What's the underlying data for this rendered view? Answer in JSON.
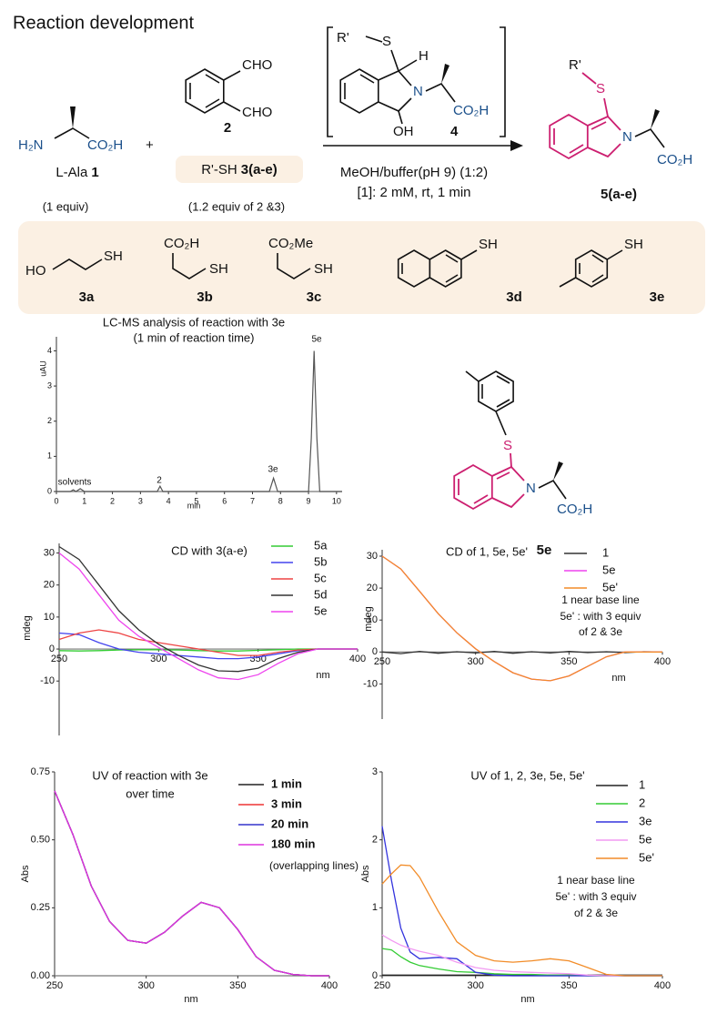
{
  "title": "Reaction development",
  "scheme": {
    "alanine": {
      "amine": "H₂N",
      "acid": "CO₂H",
      "name": "L-Ala",
      "number": "1",
      "equiv": "(1 equiv)"
    },
    "plus": "+",
    "aldehyde": {
      "group_top": "CHO",
      "group_bottom": "CHO",
      "number": "2",
      "thiol_name": "R'-SH",
      "thiol_number": "3(a-e)",
      "equiv": "(1.2 equiv of 2 &3)"
    },
    "intermediate": {
      "r": "R'",
      "s": "S",
      "h": "H",
      "n": "N",
      "acid": "CO₂H",
      "oh": "OH",
      "number": "4"
    },
    "conditions": [
      "MeOH/buffer(pH 9) (1:2)",
      "[1]: 2 mM, rt, 1 min"
    ],
    "product": {
      "r": "R'",
      "s": "S",
      "n": "N",
      "acid": "CO₂H",
      "number": "5(a-e)"
    }
  },
  "thiols": [
    {
      "groups": [
        "HO",
        "SH"
      ],
      "number": "3a"
    },
    {
      "groups": [
        "CO₂H",
        "SH"
      ],
      "number": "3b"
    },
    {
      "groups": [
        "CO₂Me",
        "SH"
      ],
      "number": "3c"
    },
    {
      "groups": [
        "SH"
      ],
      "number": "3d"
    },
    {
      "groups": [
        "SH"
      ],
      "number": "3e"
    }
  ],
  "product_5e": {
    "s": "S",
    "n": "N",
    "acid": "CO₂H",
    "number": "5e"
  },
  "chart_data": [
    {
      "type": "line",
      "title": "LC-MS analysis of reaction with 3e",
      "subtitle": "(1 min of reaction time)",
      "x_label": "min",
      "y_label": "uAU",
      "x": [
        0,
        0.5,
        0.6,
        0.7,
        0.85,
        1.0,
        3.6,
        3.7,
        3.8,
        7.6,
        7.75,
        7.9,
        9.0,
        9.1,
        9.2,
        9.3,
        9.4,
        10.2
      ],
      "values": [
        0,
        0,
        0.05,
        0,
        0.08,
        0,
        0,
        0.15,
        0,
        0,
        0.38,
        0,
        0,
        1.5,
        4.0,
        1.5,
        0,
        0
      ],
      "color": "#555555",
      "peak_labels": [
        "solvents",
        "2",
        "3e",
        "5e"
      ],
      "xlim": [
        0,
        10.2
      ],
      "ylim": [
        0,
        4.4
      ],
      "xticks": [
        0,
        1,
        2,
        3,
        4,
        5,
        6,
        7,
        8,
        9,
        10
      ],
      "yticks": [
        0,
        1,
        2,
        3,
        4
      ]
    },
    {
      "type": "line",
      "title": "CD with 3(a-e)",
      "x_label": "nm",
      "y_label": "mdeg",
      "x": [
        250,
        260,
        270,
        280,
        290,
        300,
        310,
        320,
        330,
        340,
        350,
        360,
        370,
        380,
        390,
        400
      ],
      "series": [
        {
          "name": "5a",
          "color": "#33cc33",
          "values": [
            -0.5,
            -0.6,
            -0.5,
            -0.3,
            -0.2,
            -0.2,
            -0.3,
            -0.5,
            -0.6,
            -0.6,
            -0.4,
            -0.2,
            0,
            0,
            0,
            0
          ]
        },
        {
          "name": "5b",
          "color": "#4444ee",
          "values": [
            5,
            4.5,
            2,
            0,
            -1,
            -1.5,
            -2,
            -2.5,
            -3,
            -3,
            -2.5,
            -1.5,
            -0.5,
            0,
            0,
            0
          ]
        },
        {
          "name": "5c",
          "color": "#ee4444",
          "values": [
            3,
            5,
            6,
            5,
            3,
            2,
            1,
            0,
            -1,
            -2,
            -2,
            -1,
            -0.3,
            0,
            0,
            0
          ]
        },
        {
          "name": "5d",
          "color": "#333333",
          "values": [
            32,
            28,
            20,
            12,
            6,
            1.5,
            -2,
            -5,
            -6.8,
            -7,
            -6,
            -3,
            -1,
            0,
            0,
            0
          ]
        },
        {
          "name": "5e",
          "color": "#ee44ee",
          "values": [
            30,
            25,
            17,
            9,
            4,
            0.5,
            -3,
            -6.5,
            -9,
            -9.5,
            -8,
            -4.5,
            -1.5,
            0,
            0,
            0
          ]
        }
      ],
      "xlim": [
        250,
        400
      ],
      "ylim": [
        -27,
        33
      ],
      "xticks": [
        250,
        300,
        350,
        400
      ],
      "yticks": [
        -10,
        0,
        10,
        20,
        30
      ]
    },
    {
      "type": "line",
      "title": "CD of 1, 5e, 5e'",
      "x_label": "nm",
      "y_label": "mdeg",
      "x": [
        250,
        260,
        270,
        280,
        290,
        300,
        310,
        320,
        330,
        340,
        350,
        360,
        370,
        380,
        390,
        400
      ],
      "series": [
        {
          "name": "1",
          "color": "#333333",
          "values": [
            0,
            -0.5,
            0.2,
            -0.4,
            0.1,
            -0.3,
            0.2,
            -0.4,
            0.1,
            -0.3,
            0.2,
            -0.2,
            0.1,
            -0.2,
            0.1,
            0
          ]
        },
        {
          "name": "5e",
          "color": "#ee44ee",
          "values": [
            30,
            26,
            19,
            12,
            6,
            1,
            -3,
            -6.5,
            -8.5,
            -9,
            -7.5,
            -4.5,
            -1.5,
            0,
            0,
            0
          ]
        },
        {
          "name": "5e'",
          "color": "#f28c28",
          "values": [
            30,
            26,
            19,
            12,
            6,
            1,
            -3,
            -6.5,
            -8.5,
            -9,
            -7.5,
            -4.5,
            -1.5,
            0,
            0,
            0
          ]
        }
      ],
      "notes": [
        "1 near base line",
        "5e' : with 3 equiv",
        "of 2 & 3e"
      ],
      "xlim": [
        250,
        400
      ],
      "ylim": [
        -21,
        32
      ],
      "xticks": [
        250,
        300,
        350,
        400
      ],
      "yticks": [
        -10,
        0,
        10,
        20,
        30
      ]
    },
    {
      "type": "line",
      "title": "UV of reaction with 3e",
      "subtitle": "over time",
      "x_label": "nm",
      "y_label": "Abs",
      "x": [
        250,
        260,
        270,
        280,
        290,
        300,
        310,
        320,
        330,
        340,
        350,
        360,
        370,
        380,
        390,
        400
      ],
      "series": [
        {
          "name": "1 min",
          "color": "#222222",
          "values": [
            0.68,
            0.52,
            0.33,
            0.2,
            0.13,
            0.12,
            0.16,
            0.22,
            0.27,
            0.25,
            0.17,
            0.07,
            0.02,
            0.005,
            0,
            0
          ]
        },
        {
          "name": "3 min",
          "color": "#ee3333",
          "values": [
            0.68,
            0.52,
            0.33,
            0.2,
            0.13,
            0.12,
            0.16,
            0.22,
            0.27,
            0.25,
            0.17,
            0.07,
            0.02,
            0.005,
            0,
            0
          ]
        },
        {
          "name": "20 min",
          "color": "#3333cc",
          "values": [
            0.68,
            0.52,
            0.33,
            0.2,
            0.13,
            0.12,
            0.16,
            0.22,
            0.27,
            0.25,
            0.17,
            0.07,
            0.02,
            0.005,
            0,
            0
          ]
        },
        {
          "name": "180 min",
          "color": "#dd33dd",
          "values": [
            0.68,
            0.52,
            0.33,
            0.2,
            0.13,
            0.12,
            0.16,
            0.22,
            0.27,
            0.25,
            0.17,
            0.07,
            0.02,
            0.005,
            0,
            0
          ]
        }
      ],
      "notes": [
        "(overlapping lines)"
      ],
      "xlim": [
        250,
        400
      ],
      "ylim": [
        0,
        0.75
      ],
      "xticks": [
        250,
        300,
        350,
        400
      ],
      "yticks": [
        {
          "value": 0,
          "label": "0.00"
        },
        0.25,
        {
          "value": 0.5,
          "label": "0.50"
        },
        0.75
      ]
    },
    {
      "type": "line",
      "title": "UV of 1, 2, 3e, 5e, 5e'",
      "x_label": "nm",
      "y_label": "Abs",
      "x": [
        250,
        255,
        260,
        265,
        270,
        280,
        290,
        300,
        310,
        320,
        330,
        340,
        350,
        360,
        370,
        380,
        400
      ],
      "series": [
        {
          "name": "1",
          "color": "#222222",
          "values": [
            0.01,
            0.01,
            0.01,
            0.01,
            0.01,
            0.01,
            0.01,
            0.01,
            0.01,
            0.01,
            0.01,
            0.01,
            0.01,
            0.01,
            0.01,
            0.01,
            0.01
          ]
        },
        {
          "name": "2",
          "color": "#33cc33",
          "values": [
            0.4,
            0.38,
            0.28,
            0.2,
            0.15,
            0.1,
            0.06,
            0.05,
            0.03,
            0.02,
            0.02,
            0.01,
            0.01,
            0,
            0,
            0,
            0
          ]
        },
        {
          "name": "3e",
          "color": "#3333dd",
          "values": [
            2.2,
            1.4,
            0.7,
            0.35,
            0.25,
            0.27,
            0.25,
            0.05,
            0.01,
            0,
            0,
            0,
            0,
            0,
            0,
            0,
            0
          ]
        },
        {
          "name": "5e",
          "color": "#f29af2",
          "values": [
            0.6,
            0.52,
            0.45,
            0.4,
            0.36,
            0.3,
            0.2,
            0.12,
            0.08,
            0.06,
            0.05,
            0.04,
            0.03,
            0.01,
            0,
            0,
            0
          ]
        },
        {
          "name": "5e'",
          "color": "#f28c28",
          "values": [
            1.35,
            1.5,
            1.63,
            1.62,
            1.45,
            0.95,
            0.5,
            0.3,
            0.22,
            0.2,
            0.22,
            0.25,
            0.22,
            0.12,
            0.02,
            0,
            0
          ]
        }
      ],
      "notes": [
        "1 near base line",
        "5e' : with 3 equiv",
        "of 2 & 3e"
      ],
      "xlim": [
        250,
        400
      ],
      "ylim": [
        0,
        3
      ],
      "xticks": [
        250,
        300,
        350,
        400
      ],
      "yticks": [
        0,
        1,
        2,
        3
      ]
    }
  ]
}
